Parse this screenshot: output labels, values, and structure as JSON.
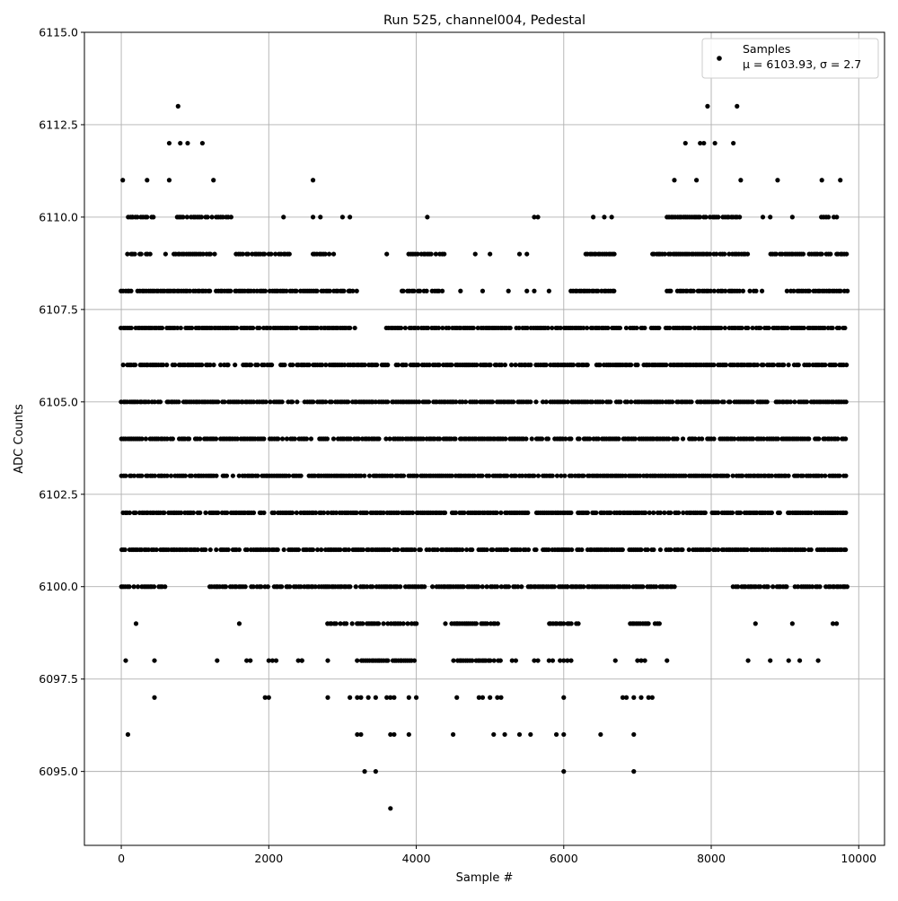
{
  "chart_data": {
    "type": "scatter",
    "title": "Run 525, channel004, Pedestal",
    "xlabel": "Sample #",
    "ylabel": "ADC Counts",
    "xlim": [
      -500,
      10350
    ],
    "ylim": [
      6093,
      6115
    ],
    "xticks": [
      0,
      2000,
      4000,
      6000,
      8000,
      10000
    ],
    "xtick_labels": [
      "0",
      "2000",
      "4000",
      "6000",
      "8000",
      "10000"
    ],
    "yticks": [
      6095.0,
      6097.5,
      6100.0,
      6102.5,
      6105.0,
      6107.5,
      6110.0,
      6112.5,
      6115.0
    ],
    "ytick_labels": [
      "6095.0",
      "6097.5",
      "6100.0",
      "6102.5",
      "6105.0",
      "6107.5",
      "6110.0",
      "6112.5",
      "6115.0"
    ],
    "grid": true,
    "legend": {
      "position": "top-right",
      "entries": [
        "Samples",
        "μ = 6103.93, σ = 2.7"
      ]
    },
    "marker_color": "#000000",
    "grid_color": "#b0b0b0",
    "series": [
      {
        "name": "Samples",
        "x_range": [
          0,
          9850
        ],
        "levels": [
          {
            "y": 6102,
            "segments": [
              [
                0,
                9850
              ]
            ]
          },
          {
            "y": 6103,
            "segments": [
              [
                0,
                9850
              ]
            ]
          },
          {
            "y": 6104,
            "segments": [
              [
                0,
                9850
              ]
            ]
          },
          {
            "y": 6105,
            "segments": [
              [
                0,
                9850
              ]
            ]
          },
          {
            "y": 6106,
            "segments": [
              [
                0,
                9850
              ]
            ]
          },
          {
            "y": 6101,
            "segments": [
              [
                0,
                9850
              ]
            ]
          },
          {
            "y": 6107,
            "segments": [
              [
                0,
                3200
              ],
              [
                3600,
                9850
              ]
            ]
          },
          {
            "y": 6100,
            "segments": [
              [
                0,
                600
              ],
              [
                1200,
                7550
              ],
              [
                8300,
                9850
              ]
            ]
          },
          {
            "y": 6108,
            "segments": [
              [
                0,
                3200
              ],
              [
                3800,
                4400
              ],
              [
                6100,
                6700
              ],
              [
                7400,
                8700
              ],
              [
                9000,
                9850
              ]
            ]
          },
          {
            "y": 6109,
            "segments": [
              [
                50,
                400
              ],
              [
                600,
                1300
              ],
              [
                1500,
                2300
              ],
              [
                2600,
                2900
              ],
              [
                3900,
                4400
              ],
              [
                6300,
                6700
              ],
              [
                7200,
                8500
              ],
              [
                8800,
                9850
              ]
            ]
          },
          {
            "y": 6110,
            "segments": [
              [
                100,
                450
              ],
              [
                700,
                1500
              ],
              [
                7400,
                8400
              ],
              [
                9500,
                9800
              ]
            ]
          },
          {
            "y": 6099,
            "segments": [
              [
                2800,
                3300
              ],
              [
                3300,
                4000
              ],
              [
                4400,
                5100
              ],
              [
                5800,
                6200
              ],
              [
                6900,
                7300
              ]
            ]
          },
          {
            "y": 6098,
            "segments": [
              [
                3200,
                3800
              ],
              [
                3800,
                4000
              ],
              [
                4500,
                5200
              ]
            ]
          }
        ],
        "extra_points": [
          [
            20,
            6111
          ],
          [
            350,
            6111
          ],
          [
            650,
            6111
          ],
          [
            1250,
            6111
          ],
          [
            2600,
            6111
          ],
          [
            7500,
            6111
          ],
          [
            7800,
            6111
          ],
          [
            8400,
            6111
          ],
          [
            8900,
            6111
          ],
          [
            9500,
            6111
          ],
          [
            9750,
            6111
          ],
          [
            150,
            6110
          ],
          [
            2200,
            6110
          ],
          [
            2600,
            6110
          ],
          [
            2700,
            6110
          ],
          [
            3000,
            6110
          ],
          [
            3100,
            6110
          ],
          [
            4150,
            6110
          ],
          [
            5600,
            6110
          ],
          [
            5650,
            6110
          ],
          [
            6400,
            6110
          ],
          [
            6550,
            6110
          ],
          [
            6650,
            6110
          ],
          [
            8700,
            6110
          ],
          [
            8800,
            6110
          ],
          [
            9100,
            6110
          ],
          [
            650,
            6112
          ],
          [
            800,
            6112
          ],
          [
            900,
            6112
          ],
          [
            1100,
            6112
          ],
          [
            7650,
            6112
          ],
          [
            7850,
            6112
          ],
          [
            7900,
            6112
          ],
          [
            8050,
            6112
          ],
          [
            8300,
            6112
          ],
          [
            770,
            6113
          ],
          [
            7950,
            6113
          ],
          [
            8350,
            6113
          ],
          [
            3600,
            6109
          ],
          [
            4800,
            6109
          ],
          [
            5000,
            6109
          ],
          [
            5400,
            6109
          ],
          [
            5500,
            6109
          ],
          [
            3100,
            6108
          ],
          [
            4600,
            6108
          ],
          [
            4900,
            6108
          ],
          [
            5250,
            6108
          ],
          [
            5500,
            6108
          ],
          [
            5600,
            6108
          ],
          [
            5800,
            6108
          ],
          [
            200,
            6099
          ],
          [
            1600,
            6099
          ],
          [
            8600,
            6099
          ],
          [
            9100,
            6099
          ],
          [
            9650,
            6099
          ],
          [
            9700,
            6099
          ],
          [
            60,
            6098
          ],
          [
            450,
            6098
          ],
          [
            1300,
            6098
          ],
          [
            1700,
            6098
          ],
          [
            1750,
            6098
          ],
          [
            2000,
            6098
          ],
          [
            2050,
            6098
          ],
          [
            2100,
            6098
          ],
          [
            2400,
            6098
          ],
          [
            2450,
            6098
          ],
          [
            2450,
            6098
          ],
          [
            2800,
            6098
          ],
          [
            5300,
            6098
          ],
          [
            5350,
            6098
          ],
          [
            5600,
            6098
          ],
          [
            5650,
            6098
          ],
          [
            5800,
            6098
          ],
          [
            5850,
            6098
          ],
          [
            5950,
            6098
          ],
          [
            6000,
            6098
          ],
          [
            6050,
            6098
          ],
          [
            6100,
            6098
          ],
          [
            6700,
            6098
          ],
          [
            7000,
            6098
          ],
          [
            7050,
            6098
          ],
          [
            7100,
            6098
          ],
          [
            7400,
            6098
          ],
          [
            8500,
            6098
          ],
          [
            8800,
            6098
          ],
          [
            9050,
            6098
          ],
          [
            9200,
            6098
          ],
          [
            9450,
            6098
          ],
          [
            450,
            6097
          ],
          [
            1950,
            6097
          ],
          [
            2000,
            6097
          ],
          [
            2800,
            6097
          ],
          [
            3100,
            6097
          ],
          [
            3200,
            6097
          ],
          [
            3250,
            6097
          ],
          [
            3350,
            6097
          ],
          [
            3450,
            6097
          ],
          [
            3600,
            6097
          ],
          [
            3650,
            6097
          ],
          [
            3700,
            6097
          ],
          [
            3900,
            6097
          ],
          [
            4000,
            6097
          ],
          [
            4550,
            6097
          ],
          [
            4850,
            6097
          ],
          [
            4900,
            6097
          ],
          [
            5000,
            6097
          ],
          [
            5100,
            6097
          ],
          [
            5150,
            6097
          ],
          [
            6000,
            6097
          ],
          [
            6800,
            6097
          ],
          [
            6850,
            6097
          ],
          [
            6950,
            6097
          ],
          [
            7050,
            6097
          ],
          [
            7150,
            6097
          ],
          [
            7200,
            6097
          ],
          [
            90,
            6096
          ],
          [
            3200,
            6096
          ],
          [
            3250,
            6096
          ],
          [
            3650,
            6096
          ],
          [
            3700,
            6096
          ],
          [
            3900,
            6096
          ],
          [
            4500,
            6096
          ],
          [
            5050,
            6096
          ],
          [
            5200,
            6096
          ],
          [
            5400,
            6096
          ],
          [
            5550,
            6096
          ],
          [
            5900,
            6096
          ],
          [
            6000,
            6096
          ],
          [
            6500,
            6096
          ],
          [
            6950,
            6096
          ],
          [
            3300,
            6095
          ],
          [
            3450,
            6095
          ],
          [
            6000,
            6095
          ],
          [
            6950,
            6095
          ],
          [
            3650,
            6094
          ],
          [
            6050,
            6100
          ],
          [
            9800,
            6100
          ]
        ]
      }
    ]
  }
}
